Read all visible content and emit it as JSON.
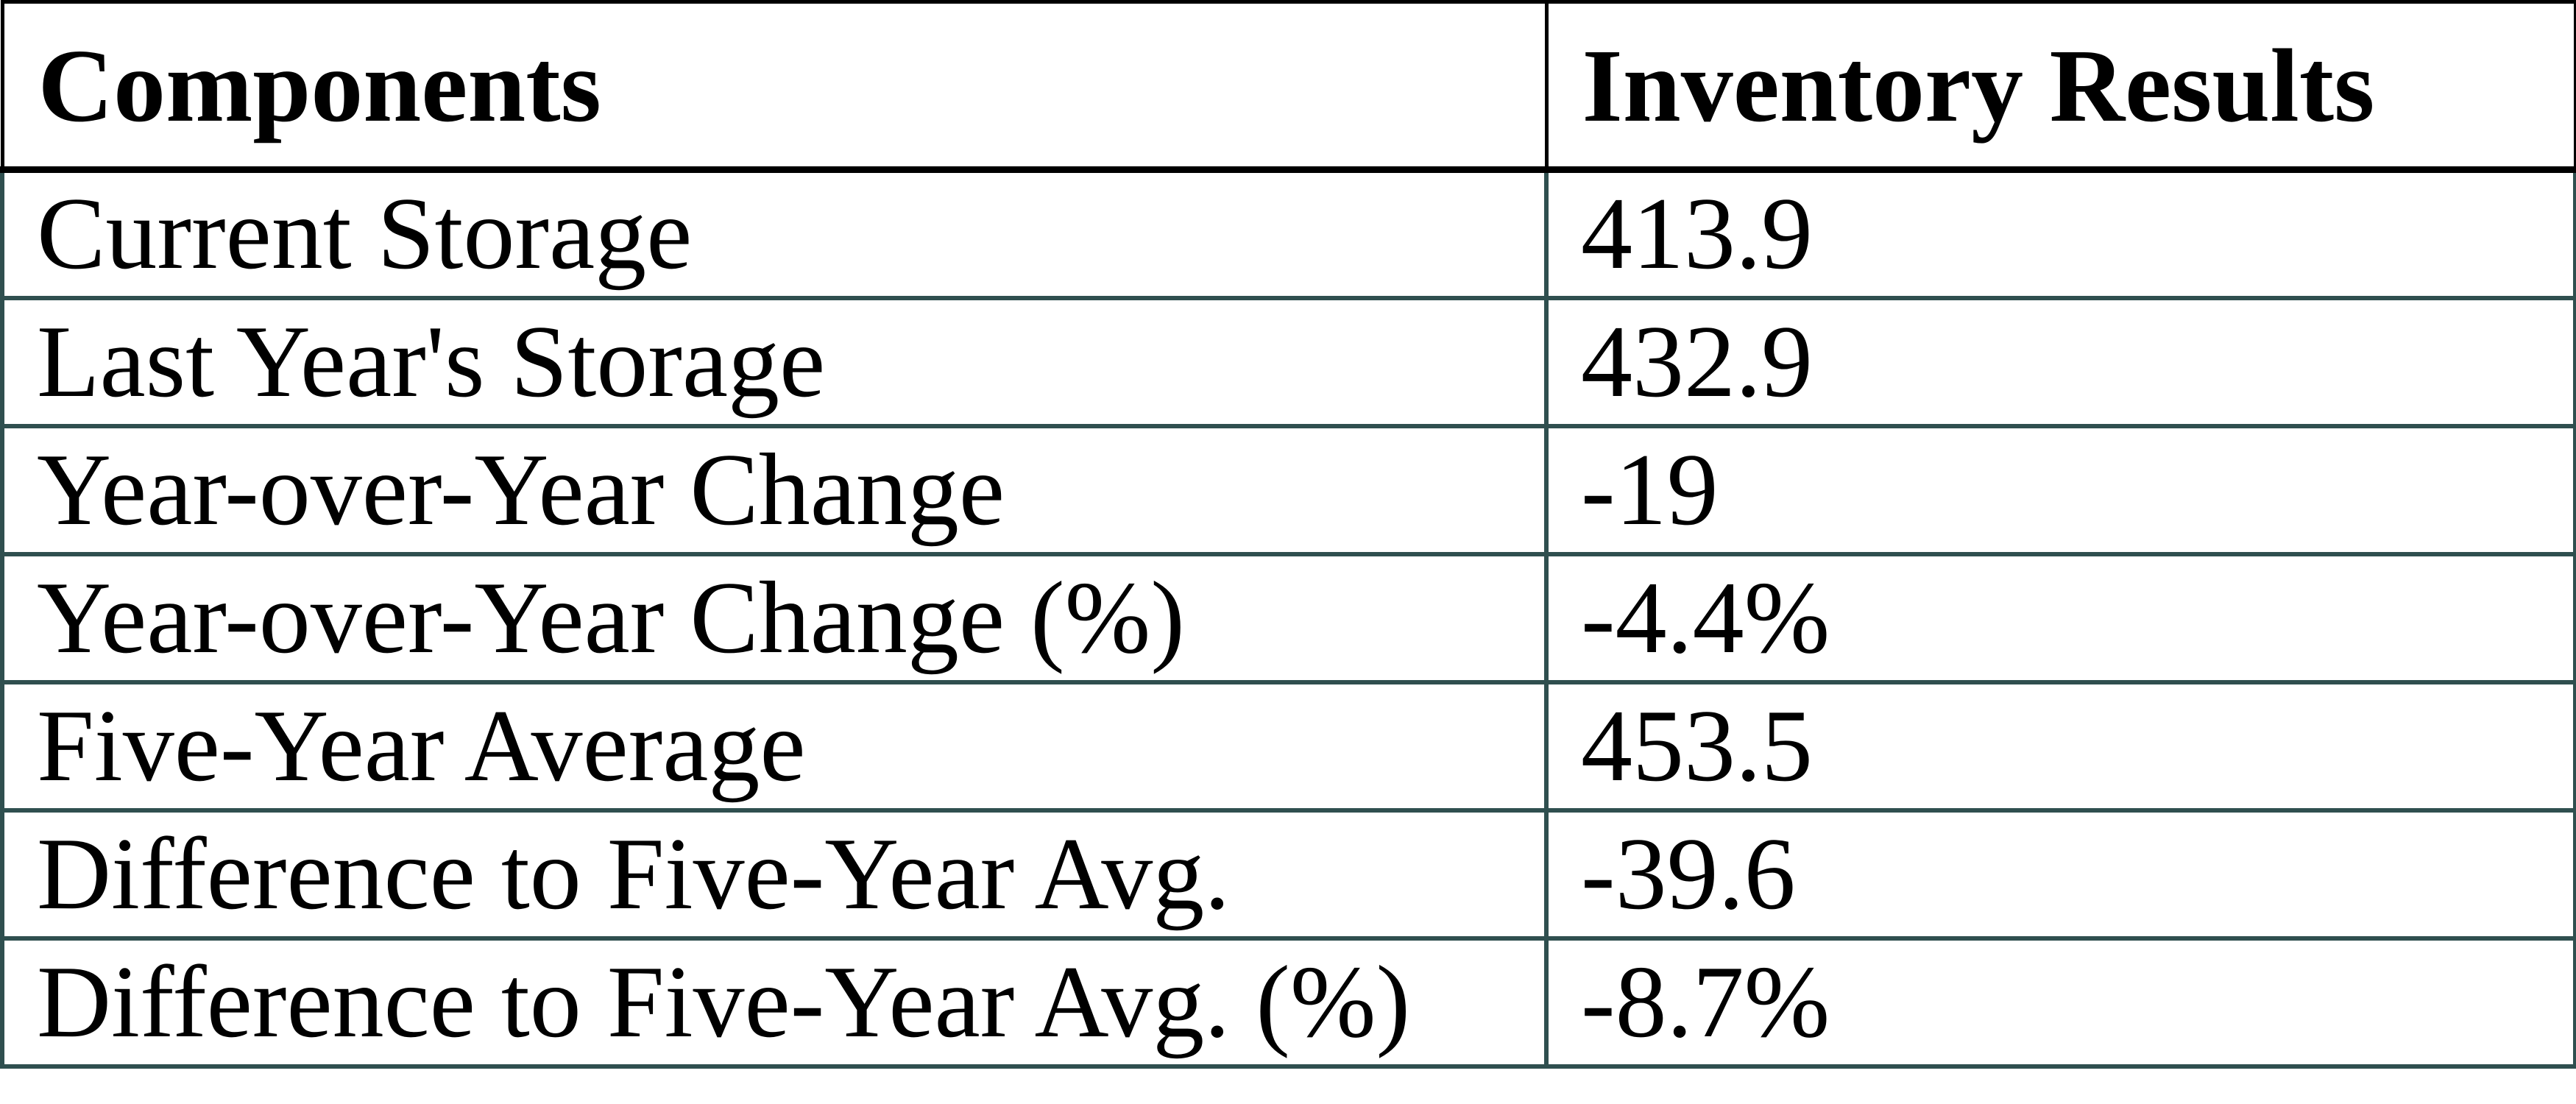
{
  "table": {
    "header": {
      "components_label": "Components",
      "results_label": "Inventory Results"
    },
    "rows": [
      {
        "label": "Current Storage",
        "value": "413.9"
      },
      {
        "label": "Last Year's Storage",
        "value": "432.9"
      },
      {
        "label": "Year-over-Year Change",
        "value": "-19"
      },
      {
        "label": "Year-over-Year Change (%)",
        "value": "-4.4%"
      },
      {
        "label": "Five-Year Average",
        "value": "453.5"
      },
      {
        "label": "Difference to Five-Year Avg.",
        "value": "-39.6"
      },
      {
        "label": "Difference to Five-Year Avg. (%)",
        "value": "-8.7%"
      }
    ],
    "colors": {
      "header_border": "#000000",
      "body_border": "#2f4f4f",
      "text": "#000000",
      "background": "#ffffff"
    }
  }
}
